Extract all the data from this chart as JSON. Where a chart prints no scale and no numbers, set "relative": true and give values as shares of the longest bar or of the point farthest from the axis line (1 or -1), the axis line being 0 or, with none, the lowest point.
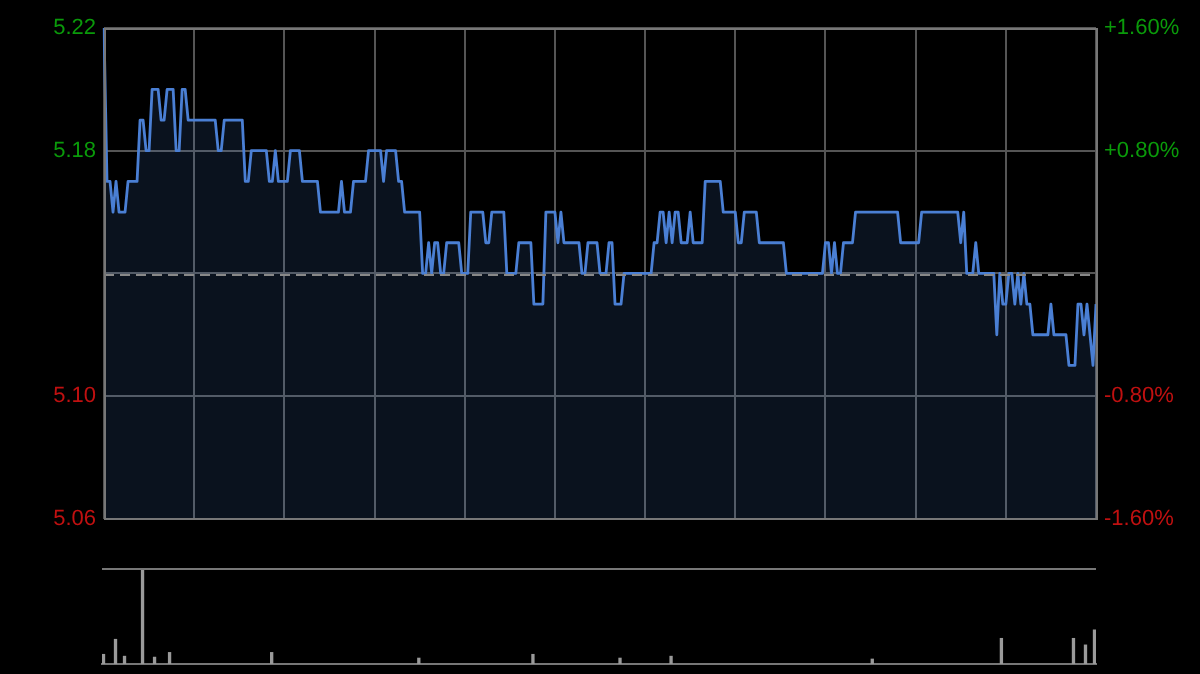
{
  "chart_data": [
    {
      "type": "area",
      "legend": false,
      "grid": true,
      "marker": "none",
      "tick_labels": "y",
      "categories": [
        null,
        null,
        null,
        null,
        null,
        null,
        null,
        null,
        null,
        null,
        null,
        null,
        null,
        null,
        null,
        null,
        null,
        null,
        null,
        null,
        null,
        null,
        null,
        null,
        null,
        null,
        null,
        null,
        null,
        null,
        null,
        null,
        null,
        null,
        null,
        null,
        null,
        null,
        null,
        null,
        null,
        null,
        null,
        null,
        null,
        null,
        null,
        null,
        null,
        null,
        null,
        null,
        null,
        null,
        null,
        null,
        null,
        null,
        null,
        null,
        null,
        null,
        null,
        null,
        null,
        null,
        null,
        null,
        null,
        null,
        null,
        null,
        null,
        null,
        null,
        null,
        null,
        null,
        null,
        null,
        null,
        null,
        null,
        null,
        null,
        null,
        null,
        null,
        null,
        null,
        null,
        null,
        null,
        null,
        null,
        null,
        null,
        null,
        null,
        null,
        null,
        null,
        null,
        null,
        null,
        null,
        null,
        null,
        null,
        null,
        null,
        null,
        null,
        null,
        null,
        null,
        null,
        null,
        null,
        null,
        null,
        null,
        null,
        null,
        null,
        null,
        null,
        null,
        null,
        null,
        null,
        null,
        null,
        null,
        null,
        null,
        null,
        null,
        null,
        null,
        null,
        null,
        null,
        null,
        null,
        null,
        null,
        null,
        null,
        null,
        null,
        null,
        null,
        null,
        null,
        null,
        null,
        null,
        null,
        null,
        null,
        null,
        null,
        null,
        null,
        null,
        null,
        null,
        null,
        null,
        null,
        null,
        null,
        null,
        null,
        null,
        null,
        null,
        null,
        null,
        null,
        null,
        null,
        null,
        null,
        null,
        null,
        null,
        null,
        null,
        null,
        null,
        null,
        null,
        null,
        null,
        null,
        null,
        null,
        null,
        null,
        null,
        null,
        null,
        null,
        null,
        null,
        null,
        null,
        null,
        null,
        null,
        null,
        null,
        null,
        null,
        null,
        null,
        null,
        null,
        null,
        null,
        null,
        null,
        null,
        null,
        null,
        null,
        null,
        null,
        null,
        null,
        null,
        null,
        null,
        null,
        null,
        null,
        null,
        null,
        null,
        null,
        null,
        null,
        null,
        null,
        null,
        null,
        null,
        null,
        null,
        null,
        null,
        null,
        null,
        null,
        null,
        null,
        null,
        null,
        null,
        null,
        null,
        null,
        null,
        null,
        null,
        null,
        null,
        null,
        null,
        null,
        null,
        null,
        null,
        null,
        null,
        null,
        null,
        null,
        null,
        null,
        null,
        null,
        null,
        null,
        null,
        null,
        null,
        null,
        null,
        null,
        null,
        null,
        null,
        null,
        null,
        null,
        null,
        null,
        null,
        null,
        null,
        null,
        null,
        null,
        null,
        null,
        null,
        null,
        null,
        null,
        null,
        null,
        null,
        null,
        null,
        null,
        null,
        null,
        null,
        null,
        null,
        null,
        null,
        null,
        null,
        null,
        null,
        null,
        null
      ],
      "ylim": [
        5.06,
        5.22
      ],
      "yticks": [
        {
          "value": 5.06,
          "label": "5.06"
        },
        {
          "value": 5.1,
          "label": "5.10"
        },
        {
          "value": 5.14,
          "label": null
        },
        {
          "value": 5.18,
          "label": "5.18"
        },
        {
          "value": 5.22,
          "label": "5.22"
        }
      ],
      "y2lim": [
        -1.6,
        1.6
      ],
      "y2ticks": [
        {
          "value": -1.6,
          "label": "-1.60%"
        },
        {
          "value": -0.8,
          "label": "-0.80%"
        },
        {
          "value": 0.8,
          "label": "+0.80%"
        },
        {
          "value": 1.6,
          "label": "+1.60%"
        }
      ],
      "ref_lines": [
        {
          "axis": "y",
          "value": 5.14,
          "color": "#888888",
          "line_style": "dashed"
        }
      ],
      "series": [
        {
          "color": "#4a7fd4",
          "values": [
            5.22,
            5.17,
            5.17,
            5.16,
            5.17,
            5.16,
            5.16,
            5.16,
            5.17,
            5.17,
            5.17,
            5.17,
            5.19,
            5.19,
            5.18,
            5.18,
            5.2,
            5.2,
            5.2,
            5.19,
            5.19,
            5.2,
            5.2,
            5.2,
            5.18,
            5.18,
            5.2,
            5.2,
            5.19,
            5.19,
            5.19,
            5.19,
            5.19,
            5.19,
            5.19,
            5.19,
            5.19,
            5.19,
            5.18,
            5.18,
            5.19,
            5.19,
            5.19,
            5.19,
            5.19,
            5.19,
            5.19,
            5.17,
            5.17,
            5.18,
            5.18,
            5.18,
            5.18,
            5.18,
            5.18,
            5.17,
            5.17,
            5.18,
            5.17,
            5.17,
            5.17,
            5.17,
            5.18,
            5.18,
            5.18,
            5.18,
            5.17,
            5.17,
            5.17,
            5.17,
            5.17,
            5.17,
            5.16,
            5.16,
            5.16,
            5.16,
            5.16,
            5.16,
            5.16,
            5.17,
            5.16,
            5.16,
            5.16,
            5.17,
            5.17,
            5.17,
            5.17,
            5.17,
            5.18,
            5.18,
            5.18,
            5.18,
            5.18,
            5.17,
            5.18,
            5.18,
            5.18,
            5.18,
            5.17,
            5.17,
            5.16,
            5.16,
            5.16,
            5.16,
            5.16,
            5.16,
            5.14,
            5.14,
            5.15,
            5.14,
            5.15,
            5.15,
            5.14,
            5.14,
            5.15,
            5.15,
            5.15,
            5.15,
            5.15,
            5.14,
            5.14,
            5.14,
            5.16,
            5.16,
            5.16,
            5.16,
            5.16,
            5.15,
            5.15,
            5.16,
            5.16,
            5.16,
            5.16,
            5.16,
            5.14,
            5.14,
            5.14,
            5.14,
            5.15,
            5.15,
            5.15,
            5.15,
            5.15,
            5.13,
            5.13,
            5.13,
            5.13,
            5.16,
            5.16,
            5.16,
            5.16,
            5.15,
            5.16,
            5.15,
            5.15,
            5.15,
            5.15,
            5.15,
            5.15,
            5.14,
            5.14,
            5.15,
            5.15,
            5.15,
            5.15,
            5.14,
            5.14,
            5.14,
            5.15,
            5.15,
            5.13,
            5.13,
            5.13,
            5.14,
            5.14,
            5.14,
            5.14,
            5.14,
            5.14,
            5.14,
            5.14,
            5.14,
            5.14,
            5.15,
            5.15,
            5.16,
            5.16,
            5.15,
            5.16,
            5.15,
            5.16,
            5.16,
            5.15,
            5.15,
            5.15,
            5.16,
            5.15,
            5.15,
            5.15,
            5.15,
            5.17,
            5.17,
            5.17,
            5.17,
            5.17,
            5.17,
            5.16,
            5.16,
            5.16,
            5.16,
            5.16,
            5.15,
            5.15,
            5.16,
            5.16,
            5.16,
            5.16,
            5.16,
            5.15,
            5.15,
            5.15,
            5.15,
            5.15,
            5.15,
            5.15,
            5.15,
            5.15,
            5.14,
            5.14,
            5.14,
            5.14,
            5.14,
            5.14,
            5.14,
            5.14,
            5.14,
            5.14,
            5.14,
            5.14,
            5.14,
            5.15,
            5.15,
            5.14,
            5.15,
            5.14,
            5.14,
            5.15,
            5.15,
            5.15,
            5.15,
            5.16,
            5.16,
            5.16,
            5.16,
            5.16,
            5.16,
            5.16,
            5.16,
            5.16,
            5.16,
            5.16,
            5.16,
            5.16,
            5.16,
            5.16,
            5.15,
            5.15,
            5.15,
            5.15,
            5.15,
            5.15,
            5.15,
            5.16,
            5.16,
            5.16,
            5.16,
            5.16,
            5.16,
            5.16,
            5.16,
            5.16,
            5.16,
            5.16,
            5.16,
            5.16,
            5.15,
            5.16,
            5.14,
            5.14,
            5.14,
            5.15,
            5.14,
            5.14,
            5.14,
            5.14,
            5.14,
            5.14,
            5.12,
            5.14,
            5.13,
            5.13,
            5.14,
            5.14,
            5.13,
            5.14,
            5.13,
            5.14,
            5.13,
            5.13,
            5.12,
            5.12,
            5.12,
            5.12,
            5.12,
            5.12,
            5.13,
            5.12,
            5.12,
            5.12,
            5.12,
            5.12,
            5.11,
            5.11,
            5.11,
            5.13,
            5.13,
            5.12,
            5.13,
            5.12,
            5.11,
            5.13
          ]
        }
      ]
    },
    {
      "type": "bar",
      "relative": true,
      "legend": false,
      "tick_labels": false,
      "categories": [
        null,
        null,
        null,
        null,
        null,
        null,
        null,
        null,
        null,
        null,
        null,
        null,
        null,
        null,
        null,
        null,
        null,
        null,
        null,
        null,
        null,
        null,
        null,
        null,
        null,
        null,
        null,
        null,
        null,
        null,
        null,
        null,
        null,
        null,
        null,
        null,
        null,
        null,
        null,
        null,
        null,
        null,
        null,
        null,
        null,
        null,
        null,
        null,
        null,
        null,
        null,
        null,
        null,
        null,
        null,
        null,
        null,
        null,
        null,
        null,
        null,
        null,
        null,
        null,
        null,
        null,
        null,
        null,
        null,
        null,
        null,
        null,
        null,
        null,
        null,
        null,
        null,
        null,
        null,
        null,
        null,
        null,
        null,
        null,
        null,
        null,
        null,
        null,
        null,
        null,
        null,
        null,
        null,
        null,
        null,
        null,
        null,
        null,
        null,
        null,
        null,
        null,
        null,
        null,
        null,
        null,
        null,
        null,
        null,
        null,
        null,
        null,
        null,
        null,
        null,
        null,
        null,
        null,
        null,
        null,
        null,
        null,
        null,
        null,
        null,
        null,
        null,
        null,
        null,
        null,
        null,
        null,
        null,
        null,
        null,
        null,
        null,
        null,
        null,
        null,
        null,
        null,
        null,
        null,
        null,
        null,
        null,
        null,
        null,
        null,
        null,
        null,
        null,
        null,
        null,
        null,
        null,
        null,
        null,
        null,
        null,
        null,
        null,
        null,
        null,
        null,
        null,
        null,
        null,
        null,
        null,
        null,
        null,
        null,
        null,
        null,
        null,
        null,
        null,
        null,
        null,
        null,
        null,
        null,
        null,
        null,
        null,
        null,
        null,
        null,
        null,
        null,
        null,
        null,
        null,
        null,
        null,
        null,
        null,
        null,
        null,
        null,
        null,
        null,
        null,
        null,
        null,
        null,
        null,
        null,
        null,
        null,
        null,
        null,
        null,
        null,
        null,
        null,
        null,
        null,
        null,
        null,
        null,
        null,
        null,
        null,
        null,
        null,
        null,
        null,
        null,
        null,
        null,
        null,
        null,
        null,
        null,
        null,
        null,
        null,
        null,
        null,
        null,
        null,
        null,
        null,
        null,
        null,
        null,
        null,
        null,
        null,
        null,
        null,
        null,
        null,
        null,
        null,
        null,
        null,
        null,
        null,
        null,
        null,
        null,
        null,
        null,
        null,
        null,
        null,
        null,
        null,
        null,
        null,
        null,
        null,
        null,
        null,
        null,
        null,
        null,
        null,
        null,
        null,
        null,
        null,
        null,
        null,
        null,
        null,
        null,
        null,
        null,
        null,
        null,
        null,
        null,
        null,
        null,
        null,
        null,
        null,
        null,
        null,
        null,
        null,
        null,
        null,
        null,
        null,
        null,
        null,
        null,
        null,
        null,
        null,
        null,
        null,
        null,
        null,
        null,
        null,
        null,
        null,
        null,
        null,
        null,
        null,
        null,
        null,
        null
      ],
      "series": [
        {
          "color": "#9a9a9a",
          "values": [
            0.1,
            null,
            null,
            null,
            0.26,
            null,
            null,
            0.08,
            null,
            null,
            null,
            null,
            null,
            1,
            null,
            null,
            null,
            0.07,
            null,
            null,
            null,
            null,
            0.12,
            null,
            null,
            null,
            null,
            null,
            null,
            null,
            null,
            null,
            null,
            null,
            null,
            null,
            null,
            null,
            null,
            null,
            null,
            null,
            null,
            null,
            null,
            null,
            null,
            null,
            null,
            null,
            null,
            null,
            null,
            null,
            null,
            null,
            0.12,
            null,
            null,
            null,
            null,
            null,
            null,
            null,
            null,
            null,
            null,
            null,
            null,
            null,
            null,
            null,
            null,
            null,
            null,
            null,
            null,
            null,
            null,
            null,
            null,
            null,
            null,
            null,
            null,
            null,
            null,
            null,
            null,
            null,
            null,
            null,
            null,
            null,
            null,
            null,
            null,
            null,
            null,
            null,
            null,
            null,
            null,
            null,
            null,
            0.06,
            null,
            null,
            null,
            null,
            null,
            null,
            null,
            null,
            null,
            null,
            null,
            null,
            null,
            null,
            null,
            null,
            null,
            null,
            null,
            null,
            null,
            null,
            null,
            null,
            null,
            null,
            null,
            null,
            null,
            null,
            null,
            null,
            null,
            null,
            null,
            null,
            null,
            0.1,
            null,
            null,
            null,
            null,
            null,
            null,
            null,
            null,
            null,
            null,
            null,
            null,
            null,
            null,
            null,
            null,
            null,
            null,
            null,
            null,
            null,
            null,
            null,
            null,
            null,
            null,
            null,
            null,
            0.06,
            null,
            null,
            null,
            null,
            null,
            null,
            null,
            null,
            null,
            null,
            null,
            null,
            null,
            null,
            null,
            null,
            0.08,
            null,
            null,
            null,
            null,
            null,
            null,
            null,
            null,
            null,
            null,
            null,
            null,
            null,
            null,
            null,
            null,
            null,
            null,
            null,
            null,
            null,
            null,
            null,
            null,
            null,
            null,
            null,
            null,
            null,
            null,
            null,
            null,
            null,
            null,
            null,
            null,
            null,
            null,
            null,
            null,
            null,
            null,
            null,
            null,
            null,
            null,
            null,
            null,
            null,
            null,
            null,
            null,
            null,
            null,
            null,
            null,
            null,
            null,
            null,
            null,
            null,
            null,
            null,
            null,
            null,
            null,
            0.05,
            null,
            null,
            null,
            null,
            null,
            null,
            null,
            null,
            null,
            null,
            null,
            null,
            null,
            null,
            null,
            null,
            null,
            null,
            null,
            null,
            null,
            null,
            null,
            null,
            null,
            null,
            null,
            null,
            null,
            null,
            null,
            null,
            null,
            null,
            null,
            null,
            null,
            null,
            null,
            null,
            null,
            null,
            0.27,
            null,
            null,
            null,
            null,
            null,
            null,
            null,
            null,
            null,
            null,
            null,
            null,
            null,
            null,
            null,
            null,
            null,
            null,
            null,
            null,
            null,
            null,
            null,
            0.27,
            null,
            null,
            null,
            0.2,
            null,
            null,
            0.36
          ]
        }
      ]
    }
  ]
}
